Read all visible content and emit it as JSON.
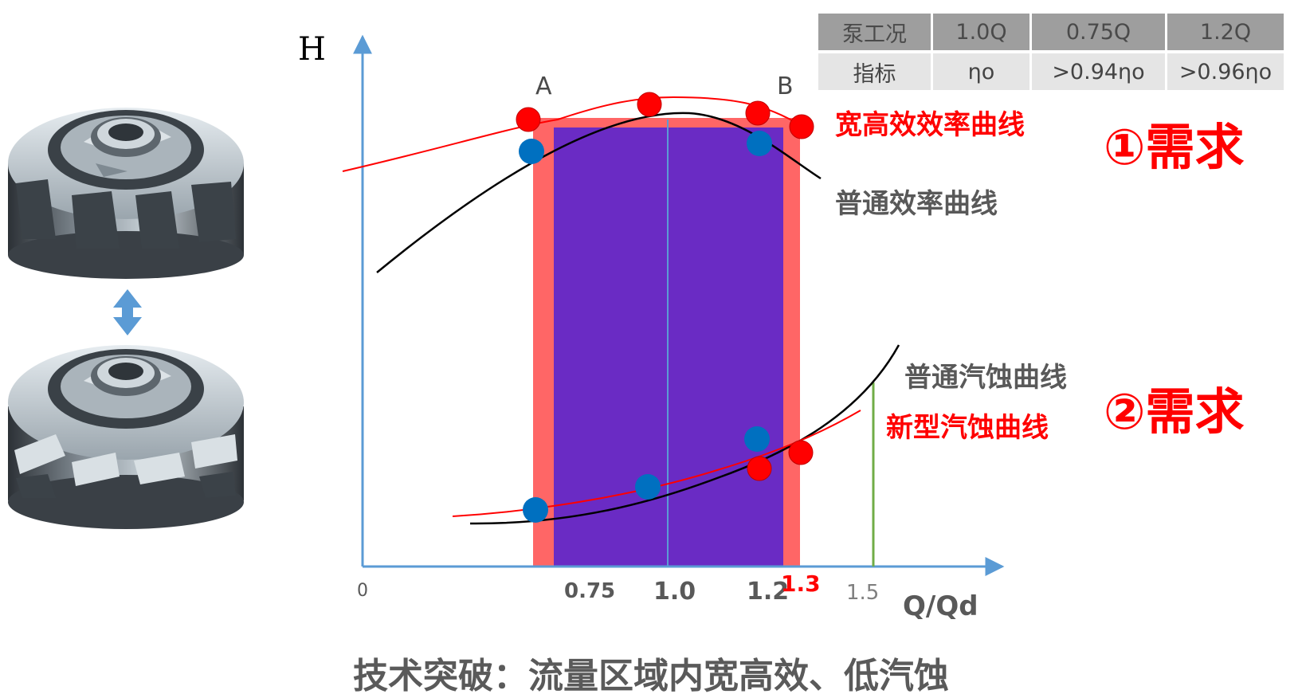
{
  "axes": {
    "y_label": "H",
    "x_label": "Q/Qd",
    "origin_label": "0",
    "ticks": [
      "0.75",
      "1.0",
      "1.2",
      "1.3",
      "1.5"
    ]
  },
  "points": {
    "a": "A",
    "b": "B"
  },
  "curves": {
    "high_efficiency": "宽高效效率曲线",
    "normal_efficiency": "普通效率曲线",
    "normal_cavitation": "普通汽蚀曲线",
    "new_cavitation": "新型汽蚀曲线"
  },
  "requirements": {
    "req1": "①需求",
    "req2": "②需求"
  },
  "spec_table": {
    "header": [
      "泵工况",
      "1.0Q",
      "0.75Q",
      "1.2Q"
    ],
    "row": [
      "指标",
      "ηo",
      ">0.94ηo",
      ">0.96ηo"
    ]
  },
  "caption": "技术突破：流量区域内宽高效、低汽蚀",
  "colors": {
    "axis": "#5b9bd5",
    "red": "#ff0000",
    "blue_dot": "#0070c0",
    "purple": "#6a2bc4",
    "salmon": "#ff6666",
    "green": "#70ad47",
    "gray_text": "#595959"
  },
  "icons": [
    "impeller-top-icon",
    "double-arrow-icon",
    "impeller-bottom-icon"
  ]
}
